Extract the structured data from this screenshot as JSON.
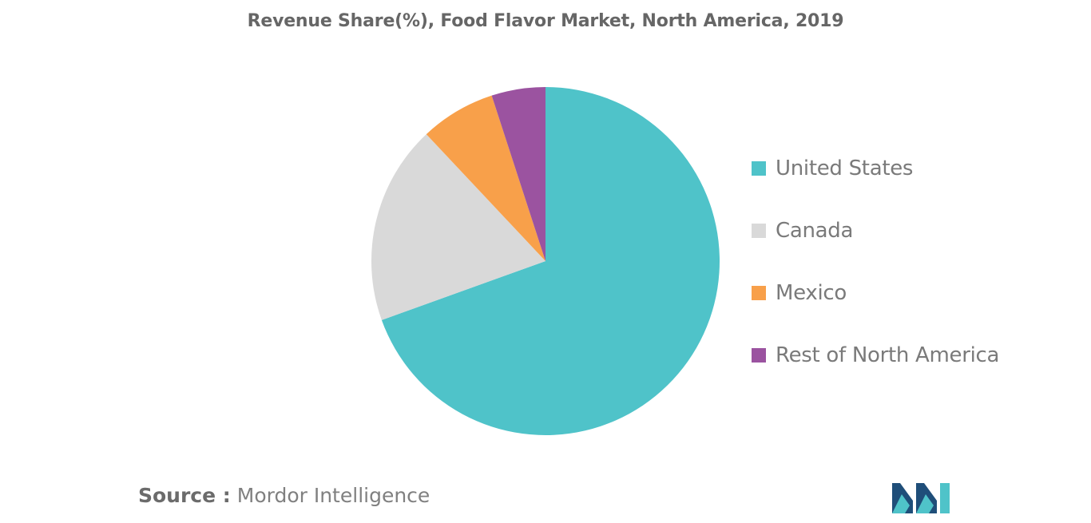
{
  "chart_data": {
    "type": "pie",
    "title": "Revenue Share(%), Food Flavor Market, North America, 2019",
    "slices": [
      {
        "label": "United States",
        "value": 69.5,
        "color": "#4fc3c9"
      },
      {
        "label": "Canada",
        "value": 18.5,
        "color": "#d9d9d9"
      },
      {
        "label": "Mexico",
        "value": 7.0,
        "color": "#f8a04a"
      },
      {
        "label": "Rest of North America",
        "value": 5.0,
        "color": "#9b53a0"
      }
    ],
    "legend_position": "right"
  },
  "source": {
    "prefix": "Source :",
    "text": "Mordor Intelligence"
  },
  "logo": {
    "icon": "mordor-intelligence-logo-icon"
  }
}
